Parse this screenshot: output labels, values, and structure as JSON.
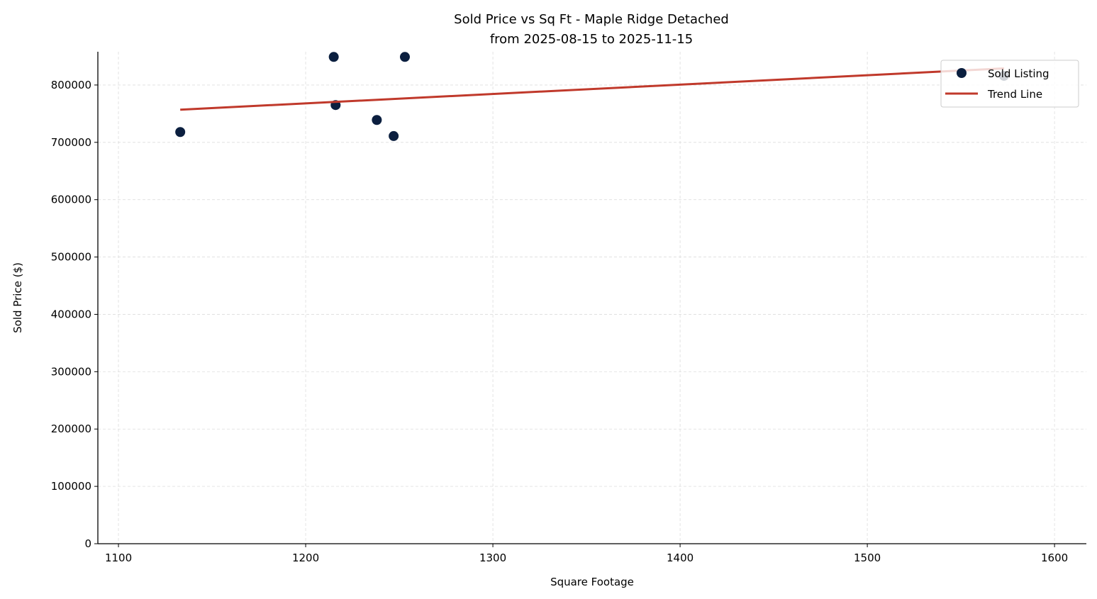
{
  "chart_data": {
    "type": "scatter",
    "title": "Sold Price vs Sq Ft - Maple Ridge Detached",
    "subtitle": "from 2025-08-15 to 2025-11-15",
    "xlabel": "Square Footage",
    "ylabel": "Sold Price ($)",
    "xlim": [
      1089,
      1617
    ],
    "ylim": [
      0,
      858000
    ],
    "xticks": [
      1100,
      1200,
      1300,
      1400,
      1500,
      1600
    ],
    "yticks": [
      0,
      100000,
      200000,
      300000,
      400000,
      500000,
      600000,
      700000,
      800000
    ],
    "grid": true,
    "legend_position": "top-right",
    "series": [
      {
        "name": "Sold Listing",
        "type": "scatter",
        "color": "#0b1f3f",
        "points": [
          {
            "x": 1133,
            "y": 718000
          },
          {
            "x": 1215,
            "y": 849000
          },
          {
            "x": 1216,
            "y": 765000
          },
          {
            "x": 1238,
            "y": 739000
          },
          {
            "x": 1247,
            "y": 711000
          },
          {
            "x": 1253,
            "y": 849000
          },
          {
            "x": 1573,
            "y": 816000
          }
        ]
      },
      {
        "name": "Trend Line",
        "type": "line",
        "color": "#c0392b",
        "points": [
          {
            "x": 1133,
            "y": 757000
          },
          {
            "x": 1573,
            "y": 829000
          }
        ]
      }
    ]
  }
}
